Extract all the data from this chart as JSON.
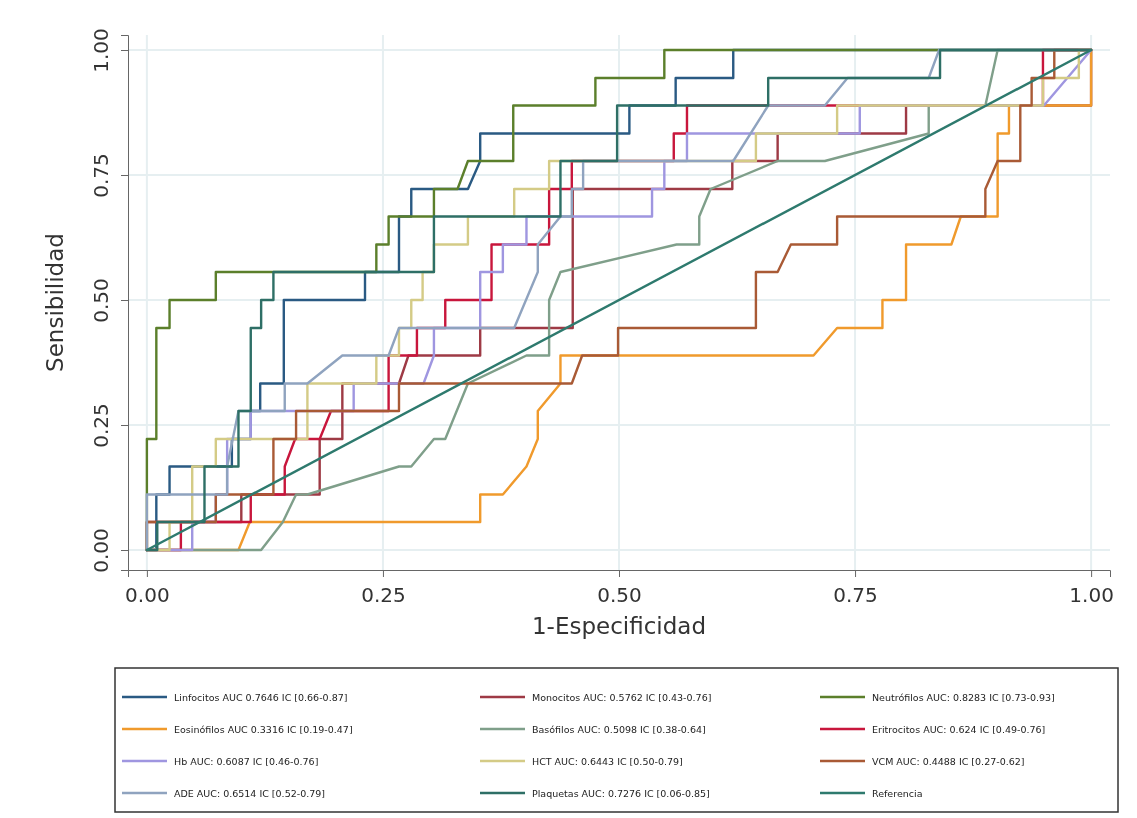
{
  "chart_data": {
    "type": "line",
    "xlabel": "1-Especificidad",
    "ylabel": "Sensibilidad",
    "xlim": [
      -0.02,
      1.02
    ],
    "ylim": [
      -0.04,
      1.03
    ],
    "xticks": [
      {
        "value": 0,
        "label": "0.00"
      },
      {
        "value": 0.25,
        "label": "0.25"
      },
      {
        "value": 0.5,
        "label": "0.50"
      },
      {
        "value": 0.75,
        "label": "0.75"
      },
      {
        "value": 1,
        "label": "1.00"
      }
    ],
    "yticks": [
      {
        "value": 0,
        "label": "0.00"
      },
      {
        "value": 0.25,
        "label": "0.25"
      },
      {
        "value": 0.5,
        "label": "0.50"
      },
      {
        "value": 0.75,
        "label": "0.75"
      },
      {
        "value": 1,
        "label": "1.00"
      }
    ],
    "grid": true,
    "legend": "bottom",
    "series": [
      {
        "name": "Linfocitos AUC 0.7646 IC [0.66-0.87]",
        "color": "#2a5a83",
        "x": [
          0,
          0.01,
          0.01,
          0.024,
          0.024,
          0.09,
          0.09,
          0.11,
          0.11,
          0.12,
          0.12,
          0.145,
          0.145,
          0.231,
          0.231,
          0.267,
          0.267,
          0.28,
          0.28,
          0.34,
          0.353,
          0.353,
          0.511,
          0.511,
          0.56,
          0.56,
          0.621,
          0.621,
          1
        ],
        "values": [
          0,
          0,
          0.111,
          0.111,
          0.167,
          0.167,
          0.222,
          0.222,
          0.278,
          0.278,
          0.333,
          0.333,
          0.5,
          0.5,
          0.556,
          0.556,
          0.667,
          0.667,
          0.722,
          0.722,
          0.778,
          0.833,
          0.833,
          0.889,
          0.889,
          0.944,
          0.944,
          1,
          1
        ]
      },
      {
        "name": "Monocitos AUC: 0.5762 IC [0.43-0.76]",
        "color": "#9e3a45",
        "x": [
          0,
          0,
          0.1,
          0.1,
          0.183,
          0.183,
          0.207,
          0.207,
          0.267,
          0.277,
          0.353,
          0.353,
          0.451,
          0.451,
          0.62,
          0.62,
          0.668,
          0.668,
          0.804,
          0.804,
          1,
          1
        ],
        "values": [
          0,
          0.056,
          0.056,
          0.111,
          0.111,
          0.222,
          0.222,
          0.333,
          0.333,
          0.389,
          0.389,
          0.444,
          0.444,
          0.722,
          0.722,
          0.778,
          0.778,
          0.833,
          0.833,
          0.889,
          0.889,
          1
        ]
      },
      {
        "name": "Neutrófilos AUC: 0.8283 IC [0.73-0.93]",
        "color": "#5b7f2b",
        "x": [
          0,
          0,
          0.01,
          0.01,
          0.024,
          0.024,
          0.073,
          0.073,
          0.243,
          0.243,
          0.256,
          0.256,
          0.304,
          0.304,
          0.329,
          0.34,
          0.388,
          0.388,
          0.475,
          0.475,
          0.548,
          0.548,
          1
        ],
        "values": [
          0,
          0.222,
          0.222,
          0.444,
          0.444,
          0.5,
          0.5,
          0.556,
          0.556,
          0.611,
          0.611,
          0.667,
          0.667,
          0.722,
          0.722,
          0.778,
          0.778,
          0.889,
          0.889,
          0.944,
          0.944,
          1,
          1
        ]
      },
      {
        "name": "Eosinófilos AUC 0.3316 IC [0.19-0.47]",
        "color": "#f09a2c",
        "x": [
          0,
          0.097,
          0.109,
          0.353,
          0.353,
          0.377,
          0.402,
          0.414,
          0.414,
          0.438,
          0.438,
          0.706,
          0.731,
          0.779,
          0.779,
          0.804,
          0.804,
          0.852,
          0.862,
          0.901,
          0.901,
          0.913,
          0.913,
          1,
          1
        ],
        "values": [
          0,
          0,
          0.056,
          0.056,
          0.111,
          0.111,
          0.167,
          0.222,
          0.278,
          0.333,
          0.389,
          0.389,
          0.444,
          0.444,
          0.5,
          0.5,
          0.611,
          0.611,
          0.667,
          0.667,
          0.833,
          0.833,
          0.889,
          0.889,
          1
        ]
      },
      {
        "name": "Basófilos AUC: 0.5098 IC [0.38-0.64]",
        "color": "#7f9f8a",
        "x": [
          0,
          0.121,
          0.144,
          0.158,
          0.17,
          0.267,
          0.28,
          0.304,
          0.316,
          0.34,
          0.402,
          0.426,
          0.426,
          0.438,
          0.561,
          0.585,
          0.585,
          0.597,
          0.668,
          0.718,
          0.828,
          0.828,
          0.888,
          0.901,
          1
        ],
        "values": [
          0,
          0,
          0.056,
          0.111,
          0.111,
          0.167,
          0.167,
          0.222,
          0.222,
          0.333,
          0.389,
          0.389,
          0.5,
          0.556,
          0.611,
          0.611,
          0.667,
          0.722,
          0.778,
          0.778,
          0.833,
          0.889,
          0.889,
          1,
          1
        ]
      },
      {
        "name": "Eritrocitos AUC: 0.624 IC [0.49-0.76]",
        "color": "#c8163c",
        "x": [
          0,
          0.036,
          0.036,
          0.11,
          0.11,
          0.146,
          0.146,
          0.157,
          0.183,
          0.195,
          0.256,
          0.256,
          0.286,
          0.286,
          0.316,
          0.316,
          0.365,
          0.365,
          0.426,
          0.426,
          0.45,
          0.45,
          0.558,
          0.558,
          0.572,
          0.572,
          0.949,
          0.949,
          1
        ],
        "values": [
          0,
          0,
          0.056,
          0.056,
          0.111,
          0.111,
          0.167,
          0.222,
          0.222,
          0.278,
          0.278,
          0.389,
          0.389,
          0.444,
          0.444,
          0.5,
          0.5,
          0.611,
          0.611,
          0.722,
          0.722,
          0.778,
          0.778,
          0.833,
          0.833,
          0.889,
          0.889,
          1,
          1
        ]
      },
      {
        "name": "Hb AUC: 0.6087 IC [0.46-0.76]",
        "color": "#9f96e0",
        "x": [
          0,
          0.048,
          0.048,
          0.073,
          0.073,
          0.085,
          0.085,
          0.11,
          0.11,
          0.219,
          0.219,
          0.293,
          0.304,
          0.304,
          0.353,
          0.353,
          0.377,
          0.377,
          0.402,
          0.402,
          0.535,
          0.535,
          0.548,
          0.548,
          0.572,
          0.572,
          0.755,
          0.755,
          0.95,
          1
        ],
        "values": [
          0,
          0,
          0.056,
          0.056,
          0.111,
          0.111,
          0.222,
          0.222,
          0.278,
          0.278,
          0.333,
          0.333,
          0.389,
          0.444,
          0.444,
          0.556,
          0.556,
          0.611,
          0.611,
          0.667,
          0.667,
          0.722,
          0.722,
          0.778,
          0.778,
          0.833,
          0.833,
          0.889,
          0.889,
          1
        ]
      },
      {
        "name": "HCT AUC: 0.6443 IC [0.50-0.79]",
        "color": "#d4cb86",
        "x": [
          0,
          0.024,
          0.024,
          0.048,
          0.048,
          0.073,
          0.073,
          0.17,
          0.17,
          0.243,
          0.243,
          0.267,
          0.267,
          0.28,
          0.28,
          0.292,
          0.292,
          0.304,
          0.304,
          0.34,
          0.34,
          0.389,
          0.389,
          0.426,
          0.426,
          0.645,
          0.645,
          0.731,
          0.731,
          0.949,
          0.949,
          0.987,
          0.987,
          1
        ],
        "values": [
          0,
          0,
          0.056,
          0.056,
          0.167,
          0.167,
          0.222,
          0.222,
          0.333,
          0.333,
          0.389,
          0.389,
          0.444,
          0.444,
          0.5,
          0.5,
          0.556,
          0.556,
          0.611,
          0.611,
          0.667,
          0.667,
          0.722,
          0.722,
          0.778,
          0.778,
          0.833,
          0.833,
          0.889,
          0.889,
          0.944,
          0.944,
          1,
          1
        ]
      },
      {
        "name": "VCM AUC: 0.4488 IC [0.27-0.62]",
        "color": "#a95a35",
        "x": [
          0,
          0,
          0.073,
          0.073,
          0.134,
          0.134,
          0.158,
          0.158,
          0.267,
          0.267,
          0.45,
          0.461,
          0.499,
          0.499,
          0.645,
          0.645,
          0.668,
          0.682,
          0.731,
          0.731,
          0.888,
          0.888,
          0.901,
          0.925,
          0.925,
          0.937,
          0.937,
          0.961,
          0.961,
          1
        ],
        "values": [
          0,
          0.056,
          0.056,
          0.111,
          0.111,
          0.222,
          0.222,
          0.278,
          0.278,
          0.333,
          0.333,
          0.389,
          0.389,
          0.444,
          0.444,
          0.556,
          0.556,
          0.611,
          0.611,
          0.667,
          0.667,
          0.722,
          0.778,
          0.778,
          0.889,
          0.889,
          0.944,
          0.944,
          1,
          1
        ]
      },
      {
        "name": "ADE AUC: 0.6514 IC [0.52-0.79]",
        "color": "#8fa3bf",
        "x": [
          0,
          0,
          0.085,
          0.085,
          0.097,
          0.146,
          0.146,
          0.17,
          0.207,
          0.256,
          0.267,
          0.389,
          0.414,
          0.414,
          0.438,
          0.45,
          0.45,
          0.462,
          0.462,
          0.621,
          0.658,
          0.718,
          0.742,
          0.828,
          0.839,
          1
        ],
        "values": [
          0,
          0.111,
          0.111,
          0.167,
          0.278,
          0.278,
          0.333,
          0.333,
          0.389,
          0.389,
          0.444,
          0.444,
          0.556,
          0.611,
          0.667,
          0.667,
          0.722,
          0.722,
          0.778,
          0.778,
          0.889,
          0.889,
          0.944,
          0.944,
          1,
          1
        ]
      },
      {
        "name": "Plaquetas AUC: 0.7276 IC [0.06-0.85]",
        "color": "#2e6f66",
        "x": [
          0,
          0.011,
          0.011,
          0.061,
          0.061,
          0.097,
          0.097,
          0.11,
          0.11,
          0.121,
          0.121,
          0.134,
          0.134,
          0.304,
          0.304,
          0.438,
          0.438,
          0.498,
          0.498,
          0.658,
          0.658,
          0.84,
          0.84,
          1
        ],
        "values": [
          0,
          0,
          0.056,
          0.056,
          0.167,
          0.167,
          0.278,
          0.278,
          0.444,
          0.444,
          0.5,
          0.5,
          0.556,
          0.556,
          0.667,
          0.667,
          0.778,
          0.778,
          0.889,
          0.889,
          0.944,
          0.944,
          1,
          1
        ]
      },
      {
        "name": "Referencia",
        "color": "#2e7a6e",
        "x": [
          0,
          1
        ],
        "values": [
          0,
          1
        ]
      }
    ]
  }
}
